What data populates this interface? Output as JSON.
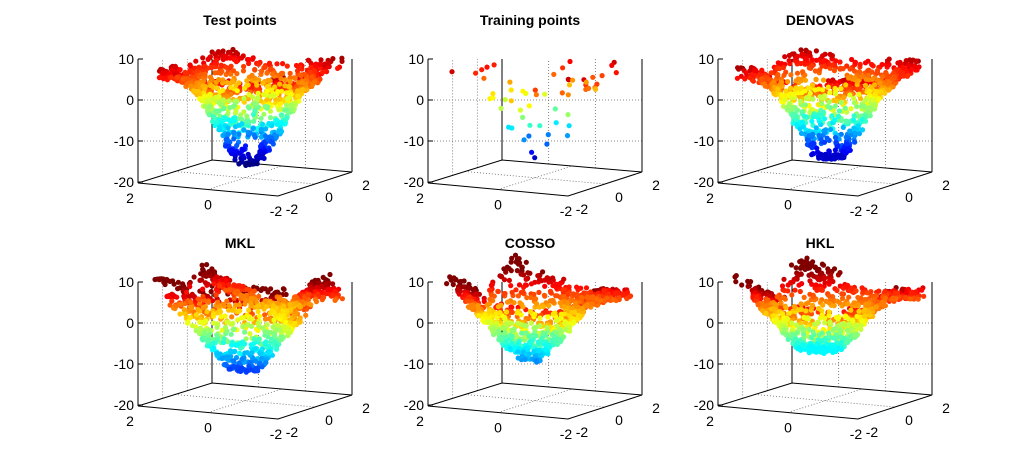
{
  "figure": {
    "description": "Six 3D scatter plots comparing a target surface (test/training points) with four methods' predictions",
    "colormap": "jet",
    "colormap_stops": [
      "#00008f",
      "#0000ff",
      "#00ffff",
      "#ffff00",
      "#ff0000",
      "#800000"
    ]
  },
  "chart_data": [
    {
      "type": "scatter",
      "dimension": "3d",
      "title": "Test points",
      "x_ticks": [
        "-2",
        "0",
        "2"
      ],
      "y_ticks": [
        "-2",
        "0",
        "2"
      ],
      "z_ticks": [
        "-20",
        "-10",
        "0",
        "10"
      ],
      "xlim": [
        -2,
        2
      ],
      "ylim": [
        -2,
        2
      ],
      "zlim": [
        -20,
        10
      ],
      "point_count": 1000,
      "value_range": [
        -17,
        9
      ],
      "colored_by": "z value",
      "shape": "bowl"
    },
    {
      "type": "scatter",
      "dimension": "3d",
      "title": "Training points",
      "x_ticks": [
        "-2",
        "0",
        "2"
      ],
      "y_ticks": [
        "-2",
        "0",
        "2"
      ],
      "z_ticks": [
        "-20",
        "-10",
        "0",
        "10"
      ],
      "xlim": [
        -2,
        2
      ],
      "ylim": [
        -2,
        2
      ],
      "zlim": [
        -20,
        10
      ],
      "point_count": 60,
      "value_range": [
        -15,
        8
      ],
      "colored_by": "z value",
      "shape": "bowl"
    },
    {
      "type": "scatter",
      "dimension": "3d",
      "title": "DENOVAS",
      "x_ticks": [
        "-2",
        "0",
        "2"
      ],
      "y_ticks": [
        "-2",
        "0",
        "2"
      ],
      "z_ticks": [
        "-20",
        "-10",
        "0",
        "10"
      ],
      "xlim": [
        -2,
        2
      ],
      "ylim": [
        -2,
        2
      ],
      "zlim": [
        -20,
        10
      ],
      "point_count": 1000,
      "value_range": [
        -15,
        10
      ],
      "colored_by": "z value",
      "shape": "bowl"
    },
    {
      "type": "scatter",
      "dimension": "3d",
      "title": "MKL",
      "x_ticks": [
        "-2",
        "0",
        "2"
      ],
      "y_ticks": [
        "-2",
        "0",
        "2"
      ],
      "z_ticks": [
        "-20",
        "-10",
        "0",
        "10"
      ],
      "xlim": [
        -2,
        2
      ],
      "ylim": [
        -2,
        2
      ],
      "zlim": [
        -20,
        10
      ],
      "point_count": 1000,
      "value_range": [
        -12,
        12
      ],
      "colored_by": "z value",
      "shape": "wavy bowl"
    },
    {
      "type": "scatter",
      "dimension": "3d",
      "title": "COSSO",
      "x_ticks": [
        "-2",
        "0",
        "2"
      ],
      "y_ticks": [
        "-2",
        "0",
        "2"
      ],
      "z_ticks": [
        "-20",
        "-10",
        "0",
        "10"
      ],
      "xlim": [
        -2,
        2
      ],
      "ylim": [
        -2,
        2
      ],
      "zlim": [
        -20,
        10
      ],
      "point_count": 1000,
      "value_range": [
        -10,
        14
      ],
      "colored_by": "z value",
      "shape": "shallow bowl"
    },
    {
      "type": "scatter",
      "dimension": "3d",
      "title": "HKL",
      "x_ticks": [
        "-2",
        "0",
        "2"
      ],
      "y_ticks": [
        "-2",
        "0",
        "2"
      ],
      "z_ticks": [
        "-20",
        "-10",
        "0",
        "10"
      ],
      "xlim": [
        -2,
        2
      ],
      "ylim": [
        -2,
        2
      ],
      "zlim": [
        -20,
        10
      ],
      "point_count": 1000,
      "value_range": [
        -7,
        14
      ],
      "colored_by": "z value",
      "shape": "shallow bowl"
    }
  ]
}
